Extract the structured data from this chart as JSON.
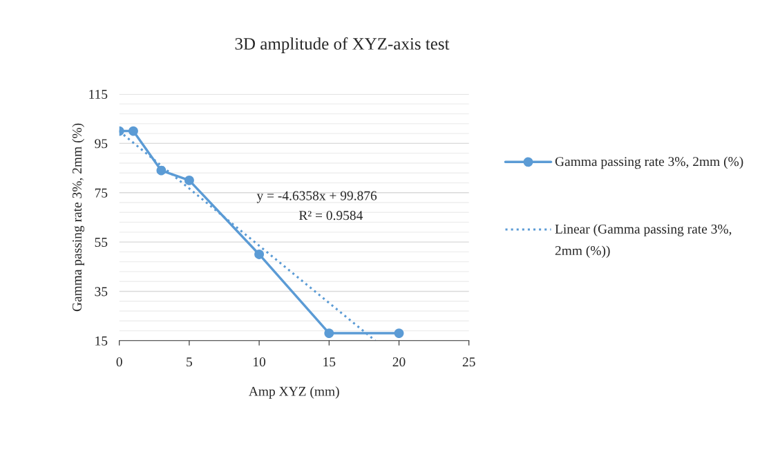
{
  "chart_data": {
    "type": "line",
    "title": "3D amplitude of XYZ-axis test",
    "xlabel": "Amp XYZ (mm)",
    "ylabel": "Gamma passing rate 3%, 2mm (%)",
    "x": [
      0,
      1,
      3,
      5,
      10,
      15,
      20
    ],
    "series": [
      {
        "name": "Gamma passing rate 3%, 2mm (%)",
        "color": "#5b9bd5",
        "values": [
          100,
          100,
          84,
          80,
          50,
          18,
          18
        ],
        "marker": "circle",
        "line_style": "solid"
      },
      {
        "name": "Linear (Gamma passing rate 3%, 2mm (%))",
        "color": "#5b9bd5",
        "x": [
          0,
          18.3
        ],
        "values": [
          99.9,
          15
        ],
        "marker": "none",
        "line_style": "dotted"
      }
    ],
    "annotations": [
      "y = -4.6358x + 99.876",
      "R² = 0.9584"
    ],
    "xlim": [
      0,
      25
    ],
    "xticks": [
      0,
      5,
      10,
      15,
      20,
      25
    ],
    "ylim": [
      15,
      115
    ],
    "yticks": [
      15,
      {
        "value": 19,
        "label": null
      },
      {
        "value": 23,
        "label": null
      },
      {
        "value": 27,
        "label": null
      },
      {
        "value": 31,
        "label": null
      },
      35,
      {
        "value": 39,
        "label": null
      },
      {
        "value": 43,
        "label": null
      },
      {
        "value": 47,
        "label": null
      },
      {
        "value": 51,
        "label": null
      },
      55,
      {
        "value": 59,
        "label": null
      },
      {
        "value": 63,
        "label": null
      },
      {
        "value": 67,
        "label": null
      },
      {
        "value": 71,
        "label": null
      },
      75,
      {
        "value": 79,
        "label": null
      },
      {
        "value": 83,
        "label": null
      },
      {
        "value": 87,
        "label": null
      },
      {
        "value": 91,
        "label": null
      },
      95,
      {
        "value": 99,
        "label": null
      },
      {
        "value": 103,
        "label": null
      },
      {
        "value": 107,
        "label": null
      },
      {
        "value": 111,
        "label": null
      },
      115
    ],
    "grid": "y",
    "legend": "right"
  }
}
